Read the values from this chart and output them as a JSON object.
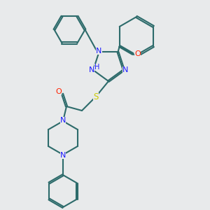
{
  "background_color": "#e8eaeb",
  "bond_color": "#2d6b6b",
  "bond_width": 1.5,
  "atom_colors": {
    "N": "#1a1aff",
    "O": "#ff2200",
    "S": "#cccc00",
    "C": "#2d6b6b",
    "H": "#1a1aff"
  },
  "figsize": [
    3.0,
    3.0
  ],
  "dpi": 100
}
